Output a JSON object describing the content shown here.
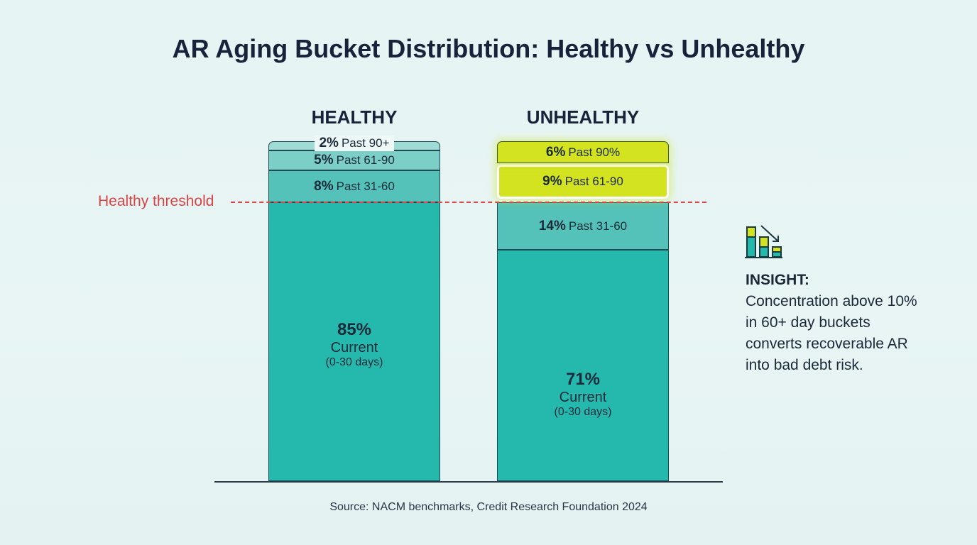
{
  "chart_data": {
    "type": "bar",
    "stacked": true,
    "title": "AR Aging Bucket Distribution: Healthy vs Unhealthy",
    "categories": [
      "HEALTHY",
      "UNHEALTHY"
    ],
    "bars": [
      {
        "category": "HEALTHY",
        "segments": [
          {
            "value": 85,
            "label": "85%",
            "name": "Current",
            "sub": "(0-30 days)",
            "color": "#25b8ad"
          },
          {
            "value": 8,
            "label": "8%",
            "name": "Past 31-60",
            "color": "#55c2b9"
          },
          {
            "value": 5,
            "label": "5%",
            "name": "Past 61-90",
            "color": "#7ccfc7"
          },
          {
            "value": 2,
            "label": "2%",
            "name": "Past 90+",
            "color": "#9fdcd5"
          }
        ]
      },
      {
        "category": "UNHEALTHY",
        "segments": [
          {
            "value": 71,
            "label": "71%",
            "name": "Current",
            "sub": "(0-30 days)",
            "color": "#25b8ad"
          },
          {
            "value": 14,
            "label": "14%",
            "name": "Past 31-60",
            "color": "#55c2b9"
          },
          {
            "value": 9,
            "label": "9%",
            "name": "Past 61-90",
            "color": "#d3e31f",
            "highlight": true
          },
          {
            "value": 6,
            "label": "6%",
            "name": "Past 90%",
            "color": "#d3e31f",
            "highlight": true
          }
        ]
      }
    ],
    "threshold": {
      "label": "Healthy threshold",
      "color": "#e04444",
      "style": "dashed"
    },
    "grid": false,
    "source": "Source: NACM benchmarks, Credit Research Foundation 2024"
  },
  "insight": {
    "icon": "bar-chart-decline-icon",
    "title": "INSIGHT:",
    "text": "Concentration above 10% in 60+ day buckets converts recoverable AR into bad debt risk."
  }
}
